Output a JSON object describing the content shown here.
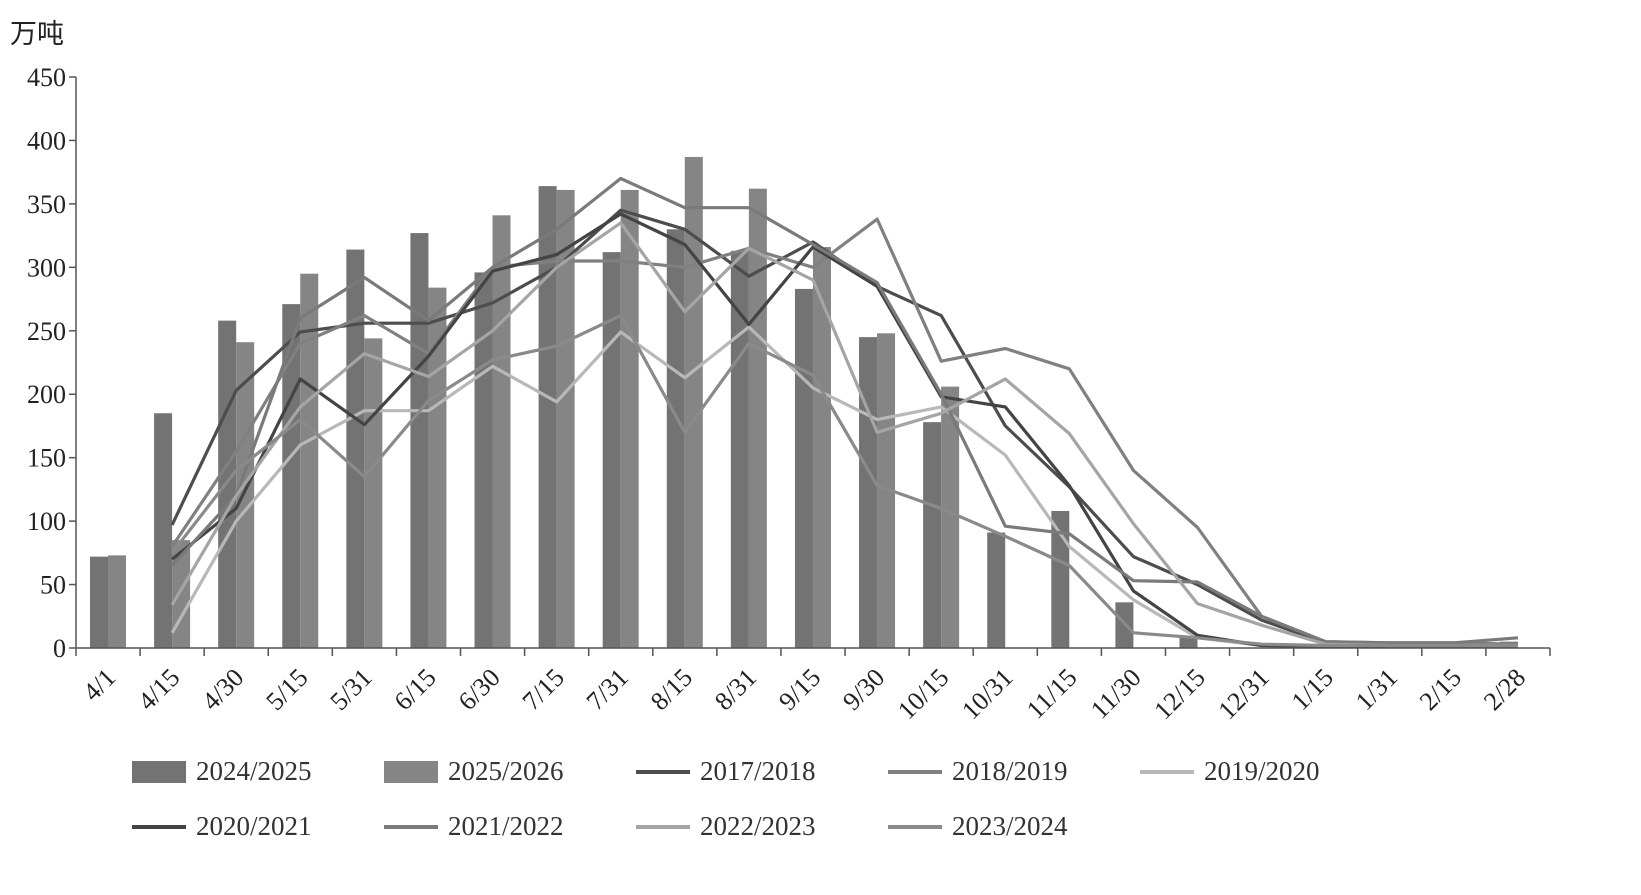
{
  "chart_data": {
    "type": "bar+line",
    "unit_label": "万吨",
    "ylim": [
      0,
      450
    ],
    "yticks": [
      0,
      50,
      100,
      150,
      200,
      250,
      300,
      350,
      400,
      450
    ],
    "grid": false,
    "legend_position": "bottom",
    "categories": [
      "4/1",
      "4/15",
      "4/30",
      "5/15",
      "5/31",
      "6/15",
      "6/30",
      "7/15",
      "7/31",
      "8/15",
      "8/31",
      "9/15",
      "9/30",
      "10/15",
      "10/31",
      "11/15",
      "11/30",
      "12/15",
      "12/31",
      "1/15",
      "1/31",
      "2/15",
      "2/28"
    ],
    "bar_series": [
      {
        "name": "2024/2025",
        "color": "#737373",
        "values": [
          72,
          185,
          258,
          271,
          314,
          327,
          296,
          364,
          312,
          330,
          313,
          283,
          245,
          178,
          91,
          108,
          36,
          8,
          null,
          null,
          null,
          null,
          5
        ]
      },
      {
        "name": "2025/2026",
        "color": "#858585",
        "values": [
          73,
          85,
          241,
          295,
          244,
          284,
          341,
          361,
          361,
          387,
          362,
          316,
          248,
          206,
          null,
          null,
          null,
          null,
          null,
          null,
          null,
          null,
          null
        ]
      }
    ],
    "line_series": [
      {
        "name": "2017/2018",
        "color": "#4d4d4d",
        "values": [
          null,
          97,
          203,
          249,
          256,
          256,
          272,
          300,
          345,
          330,
          293,
          320,
          285,
          262,
          175,
          127,
          72,
          50,
          22,
          4,
          3,
          3,
          3
        ]
      },
      {
        "name": "2018/2019",
        "color": "#808080",
        "values": [
          null,
          80,
          155,
          240,
          262,
          232,
          300,
          305,
          305,
          300,
          315,
          300,
          338,
          226,
          236,
          220,
          140,
          95,
          25,
          5,
          4,
          4,
          3
        ]
      },
      {
        "name": "2019/2020",
        "color": "#b8b8b8",
        "values": [
          null,
          12,
          100,
          160,
          187,
          187,
          222,
          194,
          249,
          213,
          253,
          205,
          180,
          190,
          152,
          80,
          38,
          8,
          2,
          1,
          1,
          1,
          1
        ]
      },
      {
        "name": "2020/2021",
        "color": "#444444",
        "values": [
          null,
          70,
          110,
          212,
          176,
          230,
          297,
          310,
          342,
          318,
          255,
          316,
          285,
          198,
          190,
          128,
          45,
          10,
          2,
          1,
          1,
          1,
          1
        ]
      },
      {
        "name": "2021/2022",
        "color": "#7a7a7a",
        "values": [
          null,
          65,
          120,
          260,
          292,
          258,
          300,
          330,
          370,
          347,
          347,
          318,
          288,
          200,
          96,
          90,
          53,
          52,
          25,
          5,
          4,
          4,
          8
        ]
      },
      {
        "name": "2022/2023",
        "color": "#a5a5a5",
        "values": [
          null,
          34,
          120,
          190,
          232,
          214,
          250,
          300,
          335,
          265,
          315,
          290,
          170,
          185,
          212,
          169,
          98,
          35,
          18,
          3,
          2,
          2,
          2
        ]
      },
      {
        "name": "2023/2024",
        "color": "#8a8a8a",
        "values": [
          null,
          75,
          140,
          180,
          135,
          195,
          227,
          238,
          262,
          170,
          240,
          215,
          128,
          110,
          88,
          65,
          12,
          8,
          3,
          2,
          2,
          2,
          2
        ]
      }
    ]
  }
}
